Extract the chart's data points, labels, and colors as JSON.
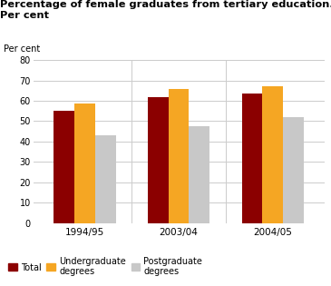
{
  "title_line1": "Percentage of female graduates from tertiary education.",
  "title_line2": "Per cent",
  "ylabel": "Per cent",
  "categories": [
    "1994/95",
    "2003/04",
    "2004/05"
  ],
  "series": {
    "Total": [
      55,
      62,
      63.5
    ],
    "Undergraduate\ndegrees": [
      58.5,
      66,
      67
    ],
    "Postgraduate\ndegrees": [
      43,
      47.5,
      52
    ]
  },
  "colors": {
    "Total": "#8B0000",
    "Undergraduate\ndegrees": "#F5A623",
    "Postgraduate\ndegrees": "#C8C8C8"
  },
  "ylim": [
    0,
    80
  ],
  "yticks": [
    0,
    10,
    20,
    30,
    40,
    50,
    60,
    70,
    80
  ],
  "bar_width": 0.22,
  "background_color": "#ffffff",
  "grid_color": "#cccccc"
}
